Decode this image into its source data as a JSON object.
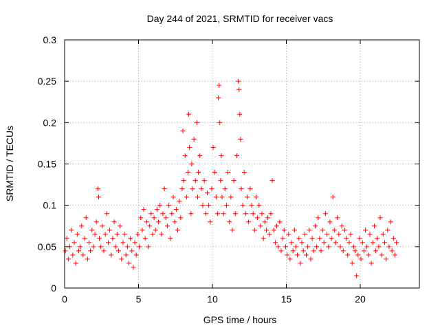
{
  "chart_data": {
    "type": "scatter",
    "title": "Day 244 of 2021, SRMTID for receiver vacs",
    "xlabel": "GPS time / hours",
    "ylabel": "SRMTID / TECUs",
    "xlim": [
      0,
      24
    ],
    "ylim": [
      0,
      0.3
    ],
    "xticks": [
      0,
      5,
      10,
      15,
      20
    ],
    "yticks": [
      0,
      0.05,
      0.1,
      0.15,
      0.2,
      0.25,
      0.3
    ],
    "xtick_labels": [
      "0",
      "5",
      "10",
      "15",
      "20"
    ],
    "ytick_labels": [
      "0",
      "0.05",
      "0.1",
      "0.15",
      "0.2",
      "0.25",
      "0.3"
    ],
    "grid": true,
    "marker": "+",
    "series": [
      {
        "name": "SRMTID",
        "color": "#ff0000",
        "x": [
          0.05,
          0.15,
          0.25,
          0.35,
          0.45,
          0.55,
          0.65,
          0.75,
          0.85,
          0.95,
          1.05,
          1.15,
          1.25,
          1.35,
          1.45,
          1.55,
          1.65,
          1.75,
          1.85,
          1.95,
          2.05,
          2.15,
          2.25,
          2.3,
          2.35,
          2.45,
          2.55,
          2.65,
          2.75,
          2.85,
          2.95,
          3.05,
          3.15,
          3.25,
          3.35,
          3.45,
          3.55,
          3.65,
          3.75,
          3.85,
          3.95,
          4.05,
          4.15,
          4.25,
          4.35,
          4.45,
          4.55,
          4.65,
          4.75,
          4.85,
          4.95,
          5.05,
          5.15,
          5.25,
          5.35,
          5.45,
          5.55,
          5.65,
          5.75,
          5.85,
          5.95,
          6.05,
          6.15,
          6.25,
          6.35,
          6.45,
          6.55,
          6.65,
          6.75,
          6.85,
          6.95,
          7.05,
          7.15,
          7.25,
          7.35,
          7.45,
          7.55,
          7.65,
          7.75,
          7.85,
          7.95,
          8.0,
          8.05,
          8.15,
          8.25,
          8.35,
          8.4,
          8.45,
          8.55,
          8.6,
          8.65,
          8.75,
          8.85,
          8.95,
          9.0,
          9.05,
          9.15,
          9.25,
          9.35,
          9.45,
          9.55,
          9.65,
          9.75,
          9.85,
          9.95,
          10.05,
          10.15,
          10.25,
          10.35,
          10.4,
          10.45,
          10.5,
          10.55,
          10.6,
          10.65,
          10.75,
          10.85,
          10.95,
          11.05,
          11.15,
          11.25,
          11.35,
          11.45,
          11.55,
          11.65,
          11.75,
          11.8,
          11.85,
          11.9,
          11.95,
          12.05,
          12.15,
          12.25,
          12.35,
          12.45,
          12.55,
          12.65,
          12.75,
          12.85,
          12.95,
          13.05,
          13.15,
          13.25,
          13.35,
          13.45,
          13.55,
          13.65,
          13.75,
          13.85,
          13.95,
          14.05,
          14.15,
          14.25,
          14.35,
          14.45,
          14.55,
          14.65,
          14.75,
          14.85,
          14.95,
          15.05,
          15.15,
          15.25,
          15.35,
          15.45,
          15.55,
          15.65,
          15.75,
          15.85,
          15.95,
          16.05,
          16.15,
          16.25,
          16.35,
          16.45,
          16.55,
          16.65,
          16.75,
          16.85,
          16.95,
          17.05,
          17.15,
          17.25,
          17.35,
          17.45,
          17.55,
          17.65,
          17.75,
          17.85,
          17.95,
          18.05,
          18.15,
          18.25,
          18.35,
          18.45,
          18.55,
          18.65,
          18.75,
          18.85,
          18.95,
          19.05,
          19.15,
          19.25,
          19.35,
          19.45,
          19.55,
          19.65,
          19.75,
          19.85,
          19.95,
          20.05,
          20.15,
          20.25,
          20.35,
          20.45,
          20.55,
          20.65,
          20.75,
          20.85,
          20.95,
          21.05,
          21.15,
          21.25,
          21.35,
          21.45,
          21.55,
          21.65,
          21.75,
          21.85,
          21.95,
          22.05,
          22.15,
          22.25,
          22.35,
          22.45
        ],
        "y": [
          0.045,
          0.06,
          0.035,
          0.05,
          0.07,
          0.04,
          0.055,
          0.03,
          0.065,
          0.045,
          0.05,
          0.075,
          0.04,
          0.06,
          0.085,
          0.035,
          0.055,
          0.045,
          0.07,
          0.05,
          0.065,
          0.08,
          0.12,
          0.11,
          0.06,
          0.05,
          0.075,
          0.045,
          0.065,
          0.09,
          0.055,
          0.07,
          0.04,
          0.06,
          0.08,
          0.05,
          0.065,
          0.045,
          0.075,
          0.035,
          0.055,
          0.065,
          0.04,
          0.05,
          0.03,
          0.06,
          0.045,
          0.025,
          0.055,
          0.04,
          0.065,
          0.05,
          0.085,
          0.07,
          0.095,
          0.06,
          0.08,
          0.05,
          0.075,
          0.09,
          0.065,
          0.085,
          0.07,
          0.095,
          0.08,
          0.1,
          0.065,
          0.09,
          0.12,
          0.085,
          0.075,
          0.1,
          0.06,
          0.09,
          0.11,
          0.08,
          0.095,
          0.07,
          0.105,
          0.085,
          0.12,
          0.19,
          0.13,
          0.16,
          0.11,
          0.14,
          0.21,
          0.17,
          0.09,
          0.15,
          0.12,
          0.18,
          0.13,
          0.2,
          0.11,
          0.14,
          0.16,
          0.12,
          0.1,
          0.13,
          0.09,
          0.115,
          0.1,
          0.08,
          0.12,
          0.17,
          0.14,
          0.11,
          0.09,
          0.23,
          0.245,
          0.2,
          0.13,
          0.16,
          0.11,
          0.09,
          0.12,
          0.1,
          0.14,
          0.08,
          0.11,
          0.07,
          0.13,
          0.09,
          0.16,
          0.25,
          0.24,
          0.21,
          0.18,
          0.12,
          0.1,
          0.14,
          0.09,
          0.11,
          0.08,
          0.12,
          0.1,
          0.09,
          0.07,
          0.11,
          0.085,
          0.1,
          0.075,
          0.09,
          0.06,
          0.08,
          0.07,
          0.085,
          0.065,
          0.09,
          0.13,
          0.07,
          0.055,
          0.075,
          0.05,
          0.08,
          0.045,
          0.06,
          0.07,
          0.05,
          0.04,
          0.065,
          0.035,
          0.055,
          0.045,
          0.07,
          0.05,
          0.04,
          0.06,
          0.03,
          0.055,
          0.045,
          0.065,
          0.04,
          0.05,
          0.07,
          0.035,
          0.06,
          0.045,
          0.075,
          0.05,
          0.085,
          0.06,
          0.045,
          0.07,
          0.055,
          0.09,
          0.065,
          0.05,
          0.08,
          0.06,
          0.11,
          0.07,
          0.055,
          0.085,
          0.065,
          0.05,
          0.075,
          0.045,
          0.07,
          0.06,
          0.04,
          0.055,
          0.065,
          0.03,
          0.05,
          0.045,
          0.015,
          0.04,
          0.06,
          0.035,
          0.055,
          0.045,
          0.07,
          0.05,
          0.04,
          0.065,
          0.03,
          0.055,
          0.075,
          0.045,
          0.06,
          0.05,
          0.085,
          0.04,
          0.065,
          0.055,
          0.035,
          0.07,
          0.05,
          0.08,
          0.045,
          0.06,
          0.04,
          0.055
        ]
      }
    ]
  }
}
